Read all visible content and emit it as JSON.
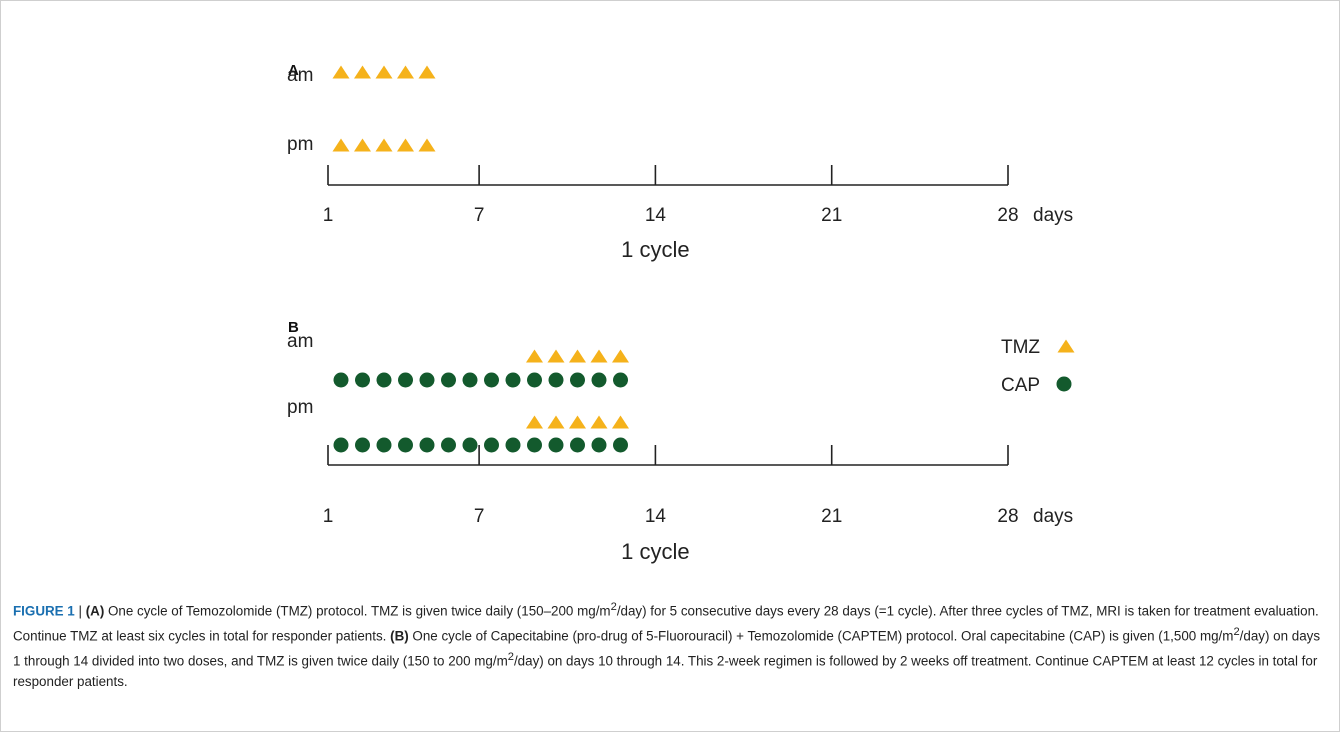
{
  "figure": {
    "colors": {
      "tmz": "#f5b21b",
      "cap": "#135a2d",
      "axis": "#222222"
    },
    "panels": [
      {
        "label": "A",
        "rows": [
          {
            "label": "am",
            "cap_days": [],
            "tmz_days": [
              1,
              2,
              3,
              4,
              5
            ]
          },
          {
            "label": "pm",
            "cap_days": [],
            "tmz_days": [
              1,
              2,
              3,
              4,
              5
            ]
          }
        ],
        "axis": {
          "ticks": [
            1,
            7,
            14,
            21,
            28
          ],
          "tick_labels": [
            "1",
            "7",
            "14",
            "21",
            "28"
          ],
          "unit": "days",
          "cycle_label": "1 cycle"
        }
      },
      {
        "label": "B",
        "rows": [
          {
            "label": "am",
            "cap_days": [
              1,
              2,
              3,
              4,
              5,
              6,
              7,
              8,
              9,
              10,
              11,
              12,
              13,
              14
            ],
            "tmz_days": [
              10,
              11,
              12,
              13,
              14
            ]
          },
          {
            "label": "pm",
            "cap_days": [
              1,
              2,
              3,
              4,
              5,
              6,
              7,
              8,
              9,
              10,
              11,
              12,
              13,
              14
            ],
            "tmz_days": [
              10,
              11,
              12,
              13,
              14
            ]
          }
        ],
        "axis": {
          "ticks": [
            1,
            7,
            14,
            21,
            28
          ],
          "tick_labels": [
            "1",
            "7",
            "14",
            "21",
            "28"
          ],
          "unit": "days",
          "cycle_label": "1 cycle"
        }
      }
    ],
    "legend": [
      {
        "label": "TMZ",
        "marker": "triangle-icon"
      },
      {
        "label": "CAP",
        "marker": "circle-icon"
      }
    ]
  },
  "caption": {
    "figure_label": "FIGURE 1",
    "separator": " | ",
    "part_a_ref": "(A)",
    "part_a_1": " One cycle of Temozolomide (TMZ) protocol. TMZ is given twice daily (150–200 mg/m",
    "part_a_sup": "2",
    "part_a_2": "/day) for 5 consecutive days every 28 days (=1 cycle). After three cycles of TMZ, MRI is taken for treatment evaluation. Continue TMZ at least six cycles in total for responder patients. ",
    "part_b_ref": "(B)",
    "part_b_1": " One cycle of Capecitabine (pro-drug of 5-Fluorouracil) + Temozolomide (CAPTEM) protocol. Oral capecitabine (CAP) is given (1,500 mg/m",
    "part_b_sup1": "2",
    "part_b_2": "/day) on days 1 through 14 divided into two doses, and TMZ is given twice daily (150 to 200 mg/m",
    "part_b_sup2": "2",
    "part_b_3": "/day) on days 10 through 14. This 2-week regimen is followed by 2 weeks off treatment. Continue CAPTEM at least 12 cycles in total for responder patients."
  }
}
